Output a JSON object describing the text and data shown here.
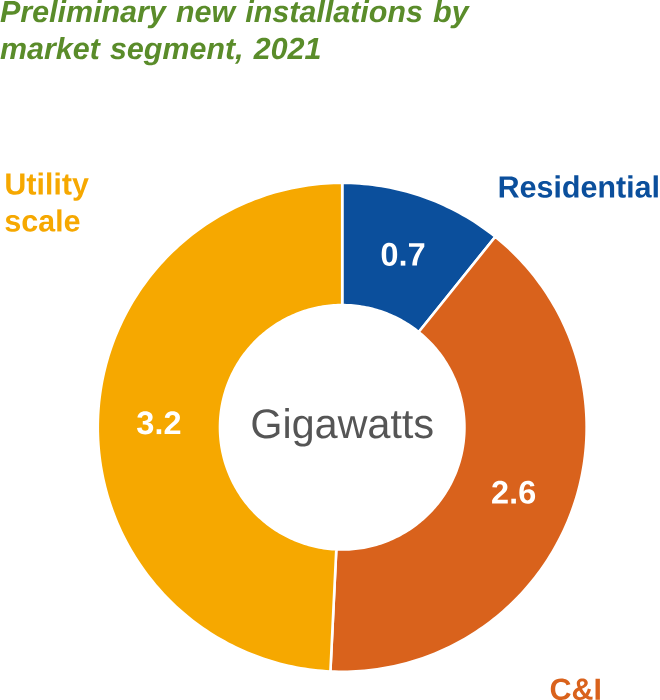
{
  "chart_data": {
    "type": "donut",
    "title": "Preliminary new installations by market segment, 2021",
    "categories": [
      "Residential",
      "C&I",
      "Utility scale"
    ],
    "values": [
      0.7,
      2.6,
      3.2
    ],
    "colors": [
      "#0b4f9c",
      "#d9621c",
      "#f6a800"
    ],
    "data_labels": true,
    "annotations": [
      "Gigawatts"
    ]
  }
}
